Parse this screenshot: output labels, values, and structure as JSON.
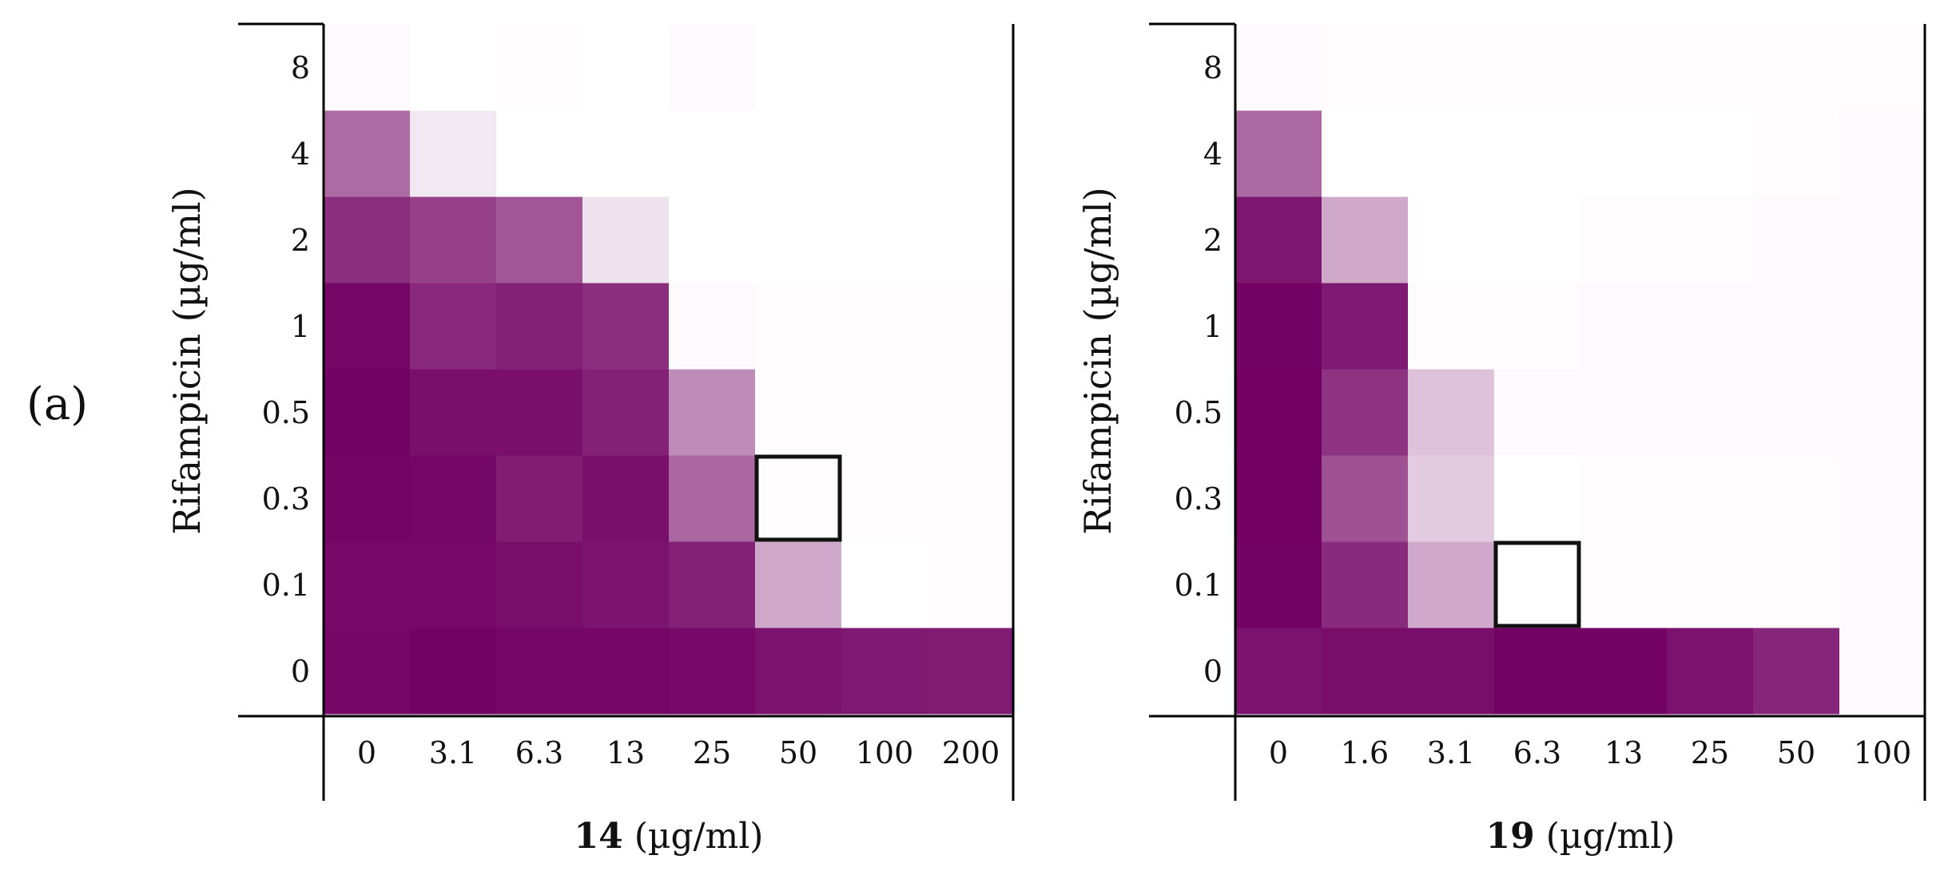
{
  "figure": {
    "panel_label": "(a)"
  },
  "chart_data": [
    {
      "type": "heatmap",
      "title": "",
      "xlabel": {
        "bold": "14",
        "rest": " (µg/ml)"
      },
      "ylabel": "Rifampicin (µg/ml)",
      "x_categories": [
        "0",
        "3.1",
        "6.3",
        "13",
        "25",
        "50",
        "100",
        "200"
      ],
      "y_categories": [
        "0",
        "0.1",
        "0.3",
        "0.5",
        "1",
        "2",
        "4",
        "8"
      ],
      "value_scale": "relative growth (0 = none, 1 = full)",
      "values": [
        [
          0.97,
          0.99,
          0.97,
          0.97,
          0.96,
          0.92,
          0.9,
          0.89
        ],
        [
          0.96,
          0.96,
          0.95,
          0.92,
          0.87,
          0.34,
          0.0,
          0.01
        ],
        [
          0.98,
          0.97,
          0.89,
          0.94,
          0.6,
          0.01,
          0.01,
          0.01
        ],
        [
          0.99,
          0.94,
          0.94,
          0.87,
          0.45,
          0.01,
          0.01,
          0.01
        ],
        [
          0.97,
          0.84,
          0.87,
          0.82,
          0.02,
          0.01,
          0.01,
          0.01
        ],
        [
          0.82,
          0.75,
          0.66,
          0.11,
          0.0,
          0.0,
          0.0,
          0.0
        ],
        [
          0.58,
          0.09,
          0.0,
          0.0,
          0.0,
          0.0,
          0.0,
          0.0
        ],
        [
          0.02,
          0.0,
          0.01,
          0.0,
          0.02,
          0.0,
          0.0,
          0.0
        ]
      ],
      "highlight": {
        "x": "50",
        "y": "0.3"
      }
    },
    {
      "type": "heatmap",
      "title": "",
      "xlabel": {
        "bold": "19",
        "rest": " (µg/ml)"
      },
      "ylabel": "Rifampicin (µg/ml)",
      "x_categories": [
        "0",
        "1.6",
        "3.1",
        "6.3",
        "13",
        "25",
        "50",
        "100"
      ],
      "y_categories": [
        "0",
        "0.1",
        "0.3",
        "0.5",
        "1",
        "2",
        "4",
        "8"
      ],
      "value_scale": "relative growth (0 = none, 1 = full)",
      "values": [
        [
          0.93,
          0.95,
          0.95,
          0.99,
          0.99,
          0.93,
          0.85,
          0.02
        ],
        [
          0.99,
          0.83,
          0.34,
          0.0,
          0.01,
          0.01,
          0.01,
          0.02
        ],
        [
          1.0,
          0.68,
          0.2,
          0.0,
          0.01,
          0.01,
          0.01,
          0.02
        ],
        [
          1.0,
          0.8,
          0.24,
          0.02,
          0.02,
          0.02,
          0.02,
          0.02
        ],
        [
          0.99,
          0.9,
          0.01,
          0.01,
          0.02,
          0.02,
          0.02,
          0.02
        ],
        [
          0.91,
          0.34,
          0.0,
          0.0,
          0.01,
          0.01,
          0.02,
          0.02
        ],
        [
          0.59,
          0.0,
          0.0,
          0.0,
          0.0,
          0.0,
          0.01,
          0.02
        ],
        [
          0.02,
          0.01,
          0.01,
          0.01,
          0.01,
          0.01,
          0.01,
          0.01
        ]
      ],
      "highlight": {
        "x": "6.3",
        "y": "0.1"
      }
    }
  ],
  "colors": {
    "high": "#710062",
    "low": "#ffffff",
    "axis": "#000000",
    "highlight_border": "#111111"
  }
}
